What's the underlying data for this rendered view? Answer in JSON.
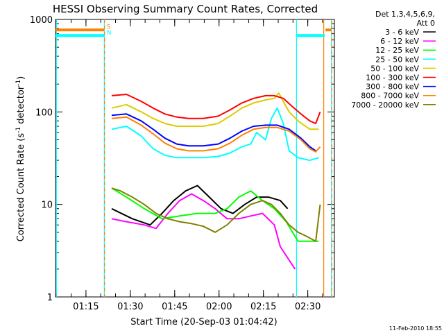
{
  "chart_data": {
    "type": "line",
    "title": "HESSI Observing Summary Count Rates, Corrected",
    "xlabel": "Start Time (20-Sep-03 01:04:42)",
    "ylabel": "Corrected Count Rate (s",
    "ylabel_sup1": "-1",
    "ylabel_mid": " detector",
    "ylabel_sup2": "-1",
    "ylabel_end": ")",
    "x_unit": "minutes since 01:04:42",
    "xlim": [
      0,
      94.3
    ],
    "ylim": [
      1,
      1000
    ],
    "yscale": "log",
    "x_ticks": [
      {
        "x": 10.3,
        "label": "01:15"
      },
      {
        "x": 25.3,
        "label": "01:30"
      },
      {
        "x": 40.3,
        "label": "01:45"
      },
      {
        "x": 55.3,
        "label": "02:00"
      },
      {
        "x": 70.3,
        "label": "02:15"
      },
      {
        "x": 85.3,
        "label": "02:30"
      }
    ],
    "y_ticks": [
      {
        "y": 1,
        "label": "1"
      },
      {
        "y": 10,
        "label": "10"
      },
      {
        "y": 100,
        "label": "100"
      },
      {
        "y": 1000,
        "label": "1000"
      }
    ],
    "legend": {
      "header1": "Det 1,3,4,5,6,9,",
      "header2": "Att 0",
      "position": "right"
    },
    "series": [
      {
        "name": "3 - 6 keV",
        "color": "#000000",
        "x": [
          19,
          26,
          32,
          36,
          40,
          44,
          48,
          52,
          56,
          60,
          64,
          68,
          72,
          76,
          78.5
        ],
        "y": [
          9,
          7,
          6,
          8,
          11,
          14,
          16,
          12,
          9,
          8,
          10,
          12,
          12,
          11,
          9
        ]
      },
      {
        "name": "6 - 12 keV",
        "color": "#ff00ff",
        "x": [
          19,
          24,
          30,
          34,
          38,
          42,
          46,
          50,
          54,
          58,
          62,
          66,
          70,
          74,
          76,
          79,
          81
        ],
        "y": [
          7,
          6.5,
          6,
          5.5,
          8,
          11,
          13,
          11,
          9,
          7,
          7,
          7.5,
          8,
          6,
          3.5,
          2.5,
          2
        ]
      },
      {
        "name": "12 - 25 keV",
        "color": "#00ff00",
        "x": [
          19,
          24,
          30,
          36,
          42,
          48,
          54,
          58,
          62,
          66,
          70,
          74,
          78,
          82,
          86,
          89
        ],
        "y": [
          15,
          12,
          9,
          7,
          7.5,
          8,
          8,
          9,
          12,
          14,
          11,
          9,
          6.5,
          4,
          4,
          4
        ]
      },
      {
        "name": "25 - 50 keV",
        "color": "#00ffff",
        "x": [
          19,
          24,
          29,
          33,
          37,
          41,
          45,
          50,
          55,
          59,
          63,
          66,
          68,
          71,
          73,
          75,
          77,
          79,
          82,
          86,
          89
        ],
        "y": [
          65,
          70,
          55,
          40,
          34,
          32,
          32,
          32,
          33,
          36,
          42,
          45,
          60,
          50,
          85,
          110,
          75,
          38,
          32,
          30,
          32
        ]
      },
      {
        "name": "50 - 100 keV",
        "color": "#ddcc00",
        "x": [
          19,
          24,
          29,
          33,
          37,
          41,
          45,
          50,
          55,
          59,
          63,
          67,
          71,
          74,
          75.5,
          77,
          79,
          82,
          86,
          89
        ],
        "y": [
          110,
          120,
          100,
          85,
          75,
          70,
          70,
          70,
          75,
          90,
          110,
          125,
          135,
          140,
          160,
          130,
          100,
          80,
          65,
          65
        ]
      },
      {
        "name": "100 - 300 keV",
        "color": "#ff0000",
        "x": [
          19,
          24,
          29,
          33,
          37,
          41,
          45,
          50,
          55,
          59,
          63,
          67,
          71,
          74,
          77,
          80,
          83,
          86,
          88,
          89.5
        ],
        "y": [
          150,
          155,
          130,
          110,
          95,
          88,
          85,
          85,
          90,
          105,
          125,
          140,
          150,
          150,
          140,
          115,
          95,
          80,
          75,
          100
        ]
      },
      {
        "name": "300 - 800 keV",
        "color": "#0000ff",
        "x": [
          19,
          24,
          29,
          33,
          37,
          41,
          45,
          50,
          55,
          59,
          63,
          67,
          71,
          75,
          79,
          83,
          86,
          88
        ],
        "y": [
          92,
          95,
          80,
          65,
          52,
          45,
          43,
          43,
          45,
          52,
          62,
          70,
          72,
          72,
          65,
          52,
          42,
          38
        ]
      },
      {
        "name": "800 - 7000 keV",
        "color": "#ff8000",
        "x": [
          19,
          24,
          29,
          33,
          37,
          41,
          45,
          50,
          55,
          59,
          63,
          67,
          71,
          75,
          79,
          83,
          86,
          88,
          89.5
        ],
        "y": [
          85,
          88,
          72,
          58,
          46,
          40,
          38,
          38,
          40,
          46,
          56,
          65,
          68,
          68,
          62,
          50,
          40,
          37,
          42
        ]
      },
      {
        "name": "7000 - 20000 keV",
        "color": "#808000",
        "x": [
          19,
          22,
          26,
          30,
          34,
          38,
          42,
          46,
          50,
          54,
          58,
          62,
          66,
          70,
          73,
          76,
          79,
          82,
          85,
          88,
          89.5
        ],
        "y": [
          15,
          14,
          12,
          10,
          8,
          7,
          6.5,
          6.2,
          5.8,
          5,
          6,
          8,
          10,
          11,
          10,
          8,
          6,
          5,
          4.5,
          4,
          10
        ]
      }
    ],
    "attenuator_bars": [
      {
        "x0": 0,
        "x1": 16.5,
        "y": 770,
        "color": "#ff8000"
      },
      {
        "x0": 0,
        "x1": 16.5,
        "y": 670,
        "color": "#00ffff"
      },
      {
        "x0": 81.5,
        "x1": 91,
        "y": 670,
        "color": "#00ffff"
      },
      {
        "x0": 91.3,
        "x1": 93.3,
        "y": 770,
        "color": "#ff8000"
      }
    ],
    "bar_labels": [
      {
        "text": "S",
        "x": 17.3,
        "y": 850,
        "color": "#ff8000"
      },
      {
        "text": "N",
        "x": 17.3,
        "y": 730,
        "color": "#00ffff"
      }
    ],
    "vertical_lines": [
      {
        "x": 0.3,
        "color": "#00ffff",
        "dashed": false
      },
      {
        "x": 16.5,
        "color": "#00ffff",
        "dashed": false
      },
      {
        "x": 16.6,
        "color": "#ff8000",
        "dashed": true
      },
      {
        "x": 81.5,
        "color": "#00ffff",
        "dashed": false
      },
      {
        "x": 90.7,
        "color": "#ff8000",
        "dashed": false
      },
      {
        "x": 93.3,
        "color": "#00ffff",
        "dashed": false
      },
      {
        "x": 93.4,
        "color": "#ff8000",
        "dashed": true
      }
    ]
  },
  "timestamp": "11-Feb-2010 18:55"
}
